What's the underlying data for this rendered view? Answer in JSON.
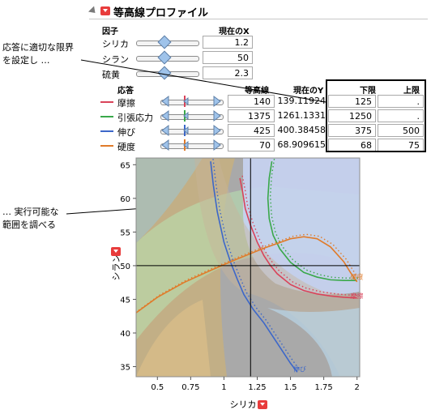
{
  "title": "等高線プロファイル",
  "factors": {
    "header_factor": "因子",
    "header_current_x": "現在のX",
    "items": [
      {
        "name": "シリカ",
        "value": "1.2",
        "level": 0.45
      },
      {
        "name": "シラン",
        "value": "50",
        "level": 0.45
      },
      {
        "name": "硫黄",
        "value": "2.3",
        "level": 0.45
      }
    ]
  },
  "responses": {
    "header_response": "応答",
    "header_contour": "等高線",
    "header_current_y": "現在のY",
    "header_lower": "下限",
    "header_upper": "上限",
    "items": [
      {
        "name": "摩擦",
        "color": "#d9435a",
        "contour": "140",
        "current_y": "139.11924",
        "lower": "125",
        "upper": "."
      },
      {
        "name": "引張応力",
        "color": "#3aa84a",
        "contour": "1375",
        "current_y": "1261.1331",
        "lower": "1250",
        "upper": "."
      },
      {
        "name": "伸び",
        "color": "#3c67c9",
        "contour": "425",
        "current_y": "400.38458",
        "lower": "375",
        "upper": "500"
      },
      {
        "name": "硬度",
        "color": "#e07b2a",
        "contour": "70",
        "current_y": "68.909615",
        "lower": "68",
        "upper": "75"
      }
    ]
  },
  "annotations": {
    "top_line1": "応答に適切な限界",
    "top_line2": "を設定し …",
    "bottom_line1": "… 実行可能な",
    "bottom_line2": "範囲を調べる"
  },
  "chart_data": {
    "type": "line",
    "xlabel": "シリカ",
    "ylabel": "シラン",
    "xlim": [
      0.34,
      2.02
    ],
    "ylim": [
      33.5,
      66
    ],
    "x_ticks": [
      "0.5",
      "0.75",
      "1",
      "1.25",
      "1.5",
      "1.75",
      "2"
    ],
    "y_ticks": [
      "35",
      "40",
      "45",
      "50",
      "55",
      "60",
      "65"
    ],
    "crosshair": {
      "x": 1.2,
      "y": 50
    },
    "contour_labels": [
      "伸び",
      "摩擦",
      "硬度"
    ],
    "series": [
      {
        "name": "摩擦",
        "color": "#d9435a",
        "x": [
          1.12,
          1.14,
          1.16,
          1.2,
          1.25,
          1.3,
          1.35,
          1.4,
          1.5,
          1.6,
          1.7,
          1.8,
          1.9,
          2.0
        ],
        "y": [
          63.0,
          61.0,
          58.5,
          56.0,
          53.5,
          51.5,
          50.0,
          48.8,
          47.2,
          46.3,
          45.8,
          45.5,
          45.3,
          45.2
        ]
      },
      {
        "name": "引張応力",
        "color": "#3aa84a",
        "x": [
          1.36,
          1.34,
          1.33,
          1.34,
          1.37,
          1.42,
          1.5,
          1.6,
          1.7,
          1.8,
          1.9,
          2.0
        ],
        "y": [
          65.5,
          63.0,
          60.0,
          57.0,
          54.5,
          52.5,
          50.5,
          49.0,
          48.3,
          47.9,
          47.8,
          47.8
        ]
      },
      {
        "name": "伸び",
        "color": "#3c67c9",
        "x": [
          0.9,
          0.92,
          0.95,
          1.0,
          1.05,
          1.1,
          1.15,
          1.22,
          1.3,
          1.4,
          1.5,
          1.55
        ],
        "y": [
          65.5,
          62.0,
          58.0,
          53.5,
          50.5,
          48.0,
          45.7,
          43.5,
          41.5,
          38.5,
          35.5,
          34.2
        ]
      },
      {
        "name": "硬度",
        "color": "#e07b2a",
        "x": [
          0.34,
          0.5,
          0.7,
          0.9,
          1.1,
          1.3,
          1.5,
          1.6,
          1.7,
          1.8,
          1.9,
          1.95,
          2.0
        ],
        "y": [
          43.0,
          45.3,
          47.5,
          49.3,
          51.0,
          52.6,
          54.0,
          54.3,
          54.0,
          52.8,
          50.6,
          49.0,
          47.6
        ]
      }
    ]
  }
}
